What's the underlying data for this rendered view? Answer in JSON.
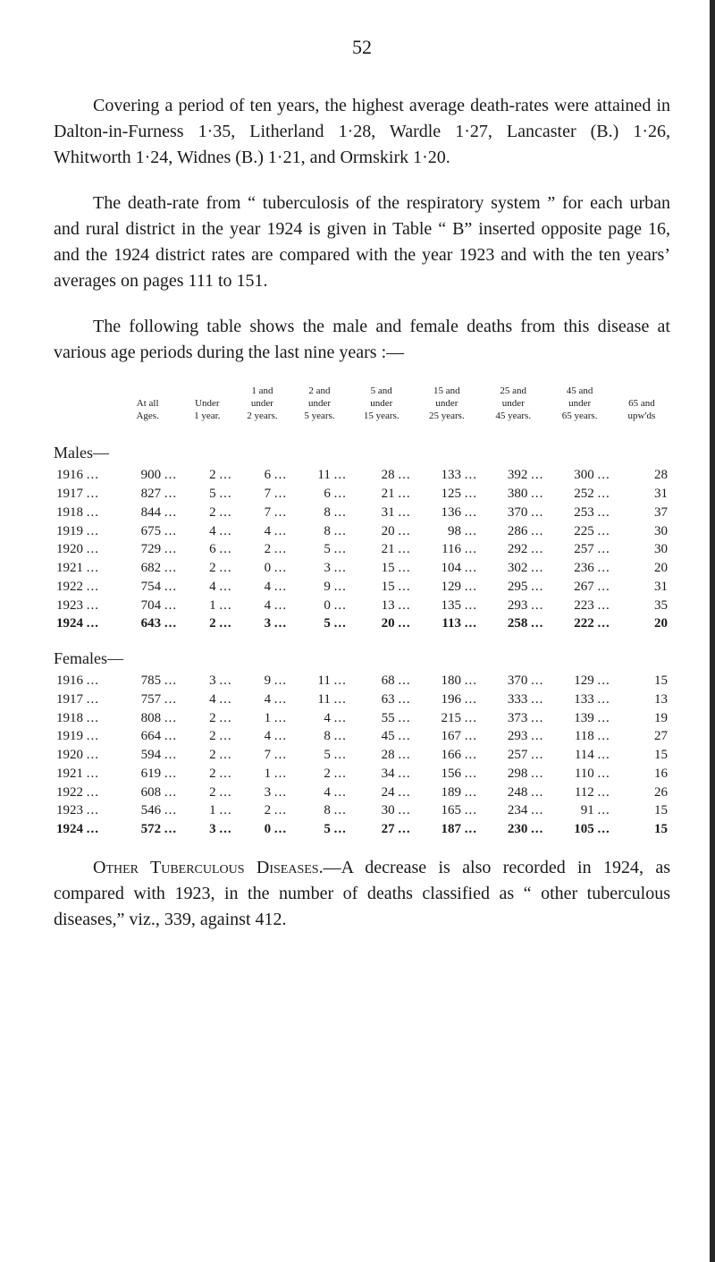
{
  "page_number": "52",
  "paragraphs": {
    "p1": "Covering a period of ten years, the highest average death-rates were attained in Dalton-in-Furness 1·35, Litherland 1·28, Wardle 1·27, Lancaster (B.) 1·26, Whitworth 1·24, Widnes (B.) 1·21, and Ormskirk 1·20.",
    "p2": "The death-rate from “ tuberculosis of the respiratory system ” for each urban and rural district in the year 1924 is given in Table “ B” inserted opposite page 16, and the 1924 district rates are compared with the year 1923 and with the ten years’ averages on pages 111 to 151.",
    "p3": "The following table shows the male and female deaths from this disease at various age periods during the last nine years :—",
    "p4_lead": "Other Tuberculous Diseases",
    "p4_rest": ".—A decrease is also recorded in 1924, as compared with 1923, in the number of deaths classified as “ other tuberculous diseases,” viz., 339, against 412."
  },
  "table": {
    "headers": [
      "",
      "At all\nAges.",
      "Under\n1 year.",
      "1 and\nunder\n2 years.",
      "2 and\nunder\n5 years.",
      "5 and\nunder\n15 years.",
      "15 and\nunder\n25 years.",
      "25 and\nunder\n45 years.",
      "45 and\nunder\n65 years.",
      "65 and\nupw'ds"
    ],
    "males_label": "Males—",
    "males": [
      {
        "y": "1916",
        "v": [
          "900",
          "2",
          "6",
          "11",
          "28",
          "133",
          "392",
          "300",
          "28"
        ]
      },
      {
        "y": "1917",
        "v": [
          "827",
          "5",
          "7",
          "6",
          "21",
          "125",
          "380",
          "252",
          "31"
        ]
      },
      {
        "y": "1918",
        "v": [
          "844",
          "2",
          "7",
          "8",
          "31",
          "136",
          "370",
          "253",
          "37"
        ]
      },
      {
        "y": "1919",
        "v": [
          "675",
          "4",
          "4",
          "8",
          "20",
          "98",
          "286",
          "225",
          "30"
        ]
      },
      {
        "y": "1920",
        "v": [
          "729",
          "6",
          "2",
          "5",
          "21",
          "116",
          "292",
          "257",
          "30"
        ]
      },
      {
        "y": "1921",
        "v": [
          "682",
          "2",
          "0",
          "3",
          "15",
          "104",
          "302",
          "236",
          "20"
        ]
      },
      {
        "y": "1922",
        "v": [
          "754",
          "4",
          "4",
          "9",
          "15",
          "129",
          "295",
          "267",
          "31"
        ]
      },
      {
        "y": "1923",
        "v": [
          "704",
          "1",
          "4",
          "0",
          "13",
          "135",
          "293",
          "223",
          "35"
        ]
      },
      {
        "y": "1924",
        "v": [
          "643",
          "2",
          "3",
          "5",
          "20",
          "113",
          "258",
          "222",
          "20"
        ],
        "bold": true
      }
    ],
    "females_label": "Females—",
    "females": [
      {
        "y": "1916",
        "v": [
          "785",
          "3",
          "9",
          "11",
          "68",
          "180",
          "370",
          "129",
          "15"
        ]
      },
      {
        "y": "1917",
        "v": [
          "757",
          "4",
          "4",
          "11",
          "63",
          "196",
          "333",
          "133",
          "13"
        ]
      },
      {
        "y": "1918",
        "v": [
          "808",
          "2",
          "1",
          "4",
          "55",
          "215",
          "373",
          "139",
          "19"
        ]
      },
      {
        "y": "1919",
        "v": [
          "664",
          "2",
          "4",
          "8",
          "45",
          "167",
          "293",
          "118",
          "27"
        ]
      },
      {
        "y": "1920",
        "v": [
          "594",
          "2",
          "7",
          "5",
          "28",
          "166",
          "257",
          "114",
          "15"
        ]
      },
      {
        "y": "1921",
        "v": [
          "619",
          "2",
          "1",
          "2",
          "34",
          "156",
          "298",
          "110",
          "16"
        ]
      },
      {
        "y": "1922",
        "v": [
          "608",
          "2",
          "3",
          "4",
          "24",
          "189",
          "248",
          "112",
          "26"
        ]
      },
      {
        "y": "1923",
        "v": [
          "546",
          "1",
          "2",
          "8",
          "30",
          "165",
          "234",
          "91",
          "15"
        ]
      },
      {
        "y": "1924",
        "v": [
          "572",
          "3",
          "0",
          "5",
          "27",
          "187",
          "230",
          "105",
          "15"
        ],
        "bold": true
      }
    ],
    "col_widths": [
      "54",
      "56",
      "48",
      "48",
      "52",
      "56",
      "58",
      "58",
      "58",
      "50"
    ],
    "ellipsis": "..."
  },
  "colors": {
    "text": "#1a1a1a",
    "background": "#ffffff",
    "edge": "#262626"
  }
}
